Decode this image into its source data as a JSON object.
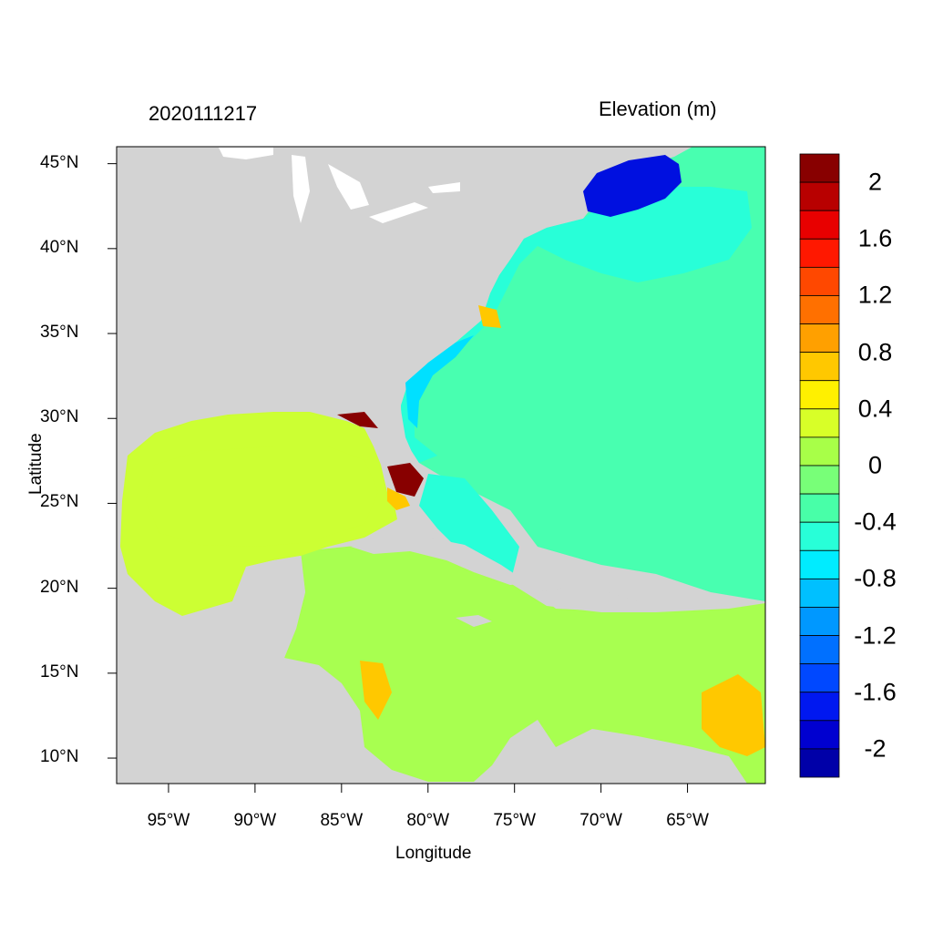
{
  "timestamp": "2020111217",
  "variable_label": "Elevation (m)",
  "xaxis_title": "Longitude",
  "yaxis_title": "Latitude",
  "lat_ticks": [
    {
      "label": "45°N",
      "lat": 45
    },
    {
      "label": "40°N",
      "lat": 40
    },
    {
      "label": "35°N",
      "lat": 35
    },
    {
      "label": "30°N",
      "lat": 30
    },
    {
      "label": "25°N",
      "lat": 25
    },
    {
      "label": "20°N",
      "lat": 20
    },
    {
      "label": "15°N",
      "lat": 15
    },
    {
      "label": "10°N",
      "lat": 10
    }
  ],
  "lon_ticks": [
    {
      "label": "95°W",
      "lon": -95
    },
    {
      "label": "90°W",
      "lon": -90
    },
    {
      "label": "85°W",
      "lon": -85
    },
    {
      "label": "80°W",
      "lon": -80
    },
    {
      "label": "75°W",
      "lon": -75
    },
    {
      "label": "70°W",
      "lon": -70
    },
    {
      "label": "65°W",
      "lon": -65
    }
  ],
  "colorbar": {
    "colors": [
      "#0000a8",
      "#0000d0",
      "#0018f0",
      "#0048ff",
      "#0070ff",
      "#0098ff",
      "#00c0ff",
      "#00ecff",
      "#28ffd8",
      "#48ffa8",
      "#78ff78",
      "#a8ff48",
      "#d8ff28",
      "#fff000",
      "#ffc800",
      "#ffa000",
      "#ff7000",
      "#ff4800",
      "#ff1800",
      "#e80000",
      "#b80000",
      "#880000"
    ],
    "labels": [
      {
        "text": "2",
        "index": 2
      },
      {
        "text": "1.6",
        "index": 4
      },
      {
        "text": "1.2",
        "index": 6
      },
      {
        "text": "0.8",
        "index": 8
      },
      {
        "text": "0.4",
        "index": 10
      },
      {
        "text": "0",
        "index": 12
      },
      {
        "text": "-0.4",
        "index": 14
      },
      {
        "text": "-0.8",
        "index": 16
      },
      {
        "text": "-1.2",
        "index": 18
      },
      {
        "text": "-1.6",
        "index": 20
      },
      {
        "text": "-2",
        "index": 22
      }
    ]
  },
  "colors": {
    "land": "#d3d3d3",
    "lakes": "#ffffff",
    "gulf": "#ccff33",
    "caribbean": "#a8ff50",
    "atlantic": "#48ffb0",
    "shelf": "#28ffd8",
    "coastal_blue": "#00e0ff",
    "gulf_of_maine": "#0010e0",
    "surge_high": "#880000",
    "surge_mid": "#ffc800"
  }
}
